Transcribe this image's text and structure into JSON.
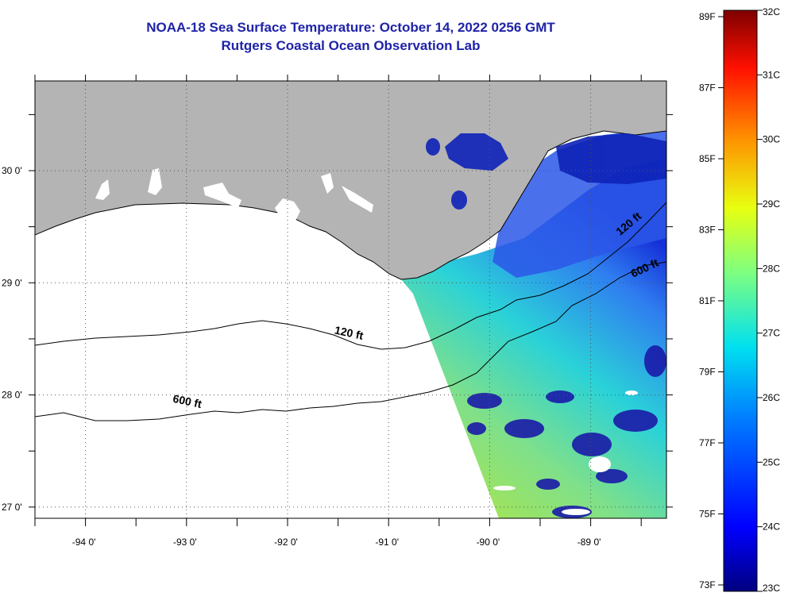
{
  "title": {
    "line1": "NOAA-18 Sea Surface Temperature:  October 14, 2022 0256 GMT",
    "line2": "Rutgers Coastal Ocean Observation Lab"
  },
  "map": {
    "lon_range": [
      -94.5,
      -88.25
    ],
    "lat_range": [
      26.9,
      30.8
    ],
    "lon_ticks": [
      {
        "value": -94,
        "label": "-94 0'"
      },
      {
        "value": -93,
        "label": "-93 0'"
      },
      {
        "value": -92,
        "label": "-92 0'"
      },
      {
        "value": -91,
        "label": "-91 0'"
      },
      {
        "value": -90,
        "label": "-90 0'"
      },
      {
        "value": -89,
        "label": "-89 0'"
      }
    ],
    "lat_ticks": [
      {
        "value": 30,
        "label": "30 0'"
      },
      {
        "value": 29,
        "label": "29 0'"
      },
      {
        "value": 28,
        "label": "28 0'"
      },
      {
        "value": 27,
        "label": "27 0'"
      }
    ],
    "contours": [
      {
        "label": "120 ft",
        "label_lon": -91.4,
        "label_lat": 28.52,
        "rotate": 12
      },
      {
        "label": "600 ft",
        "label_lon": -93.0,
        "label_lat": 27.91,
        "rotate": 12
      },
      {
        "label": "120 ft",
        "label_lon": -88.6,
        "label_lat": 29.5,
        "rotate": -40
      },
      {
        "label": "600 ft",
        "label_lon": -88.45,
        "label_lat": 29.1,
        "rotate": -25
      }
    ],
    "colors": {
      "land": "#b4b4b4",
      "ocean_nodata": "#ffffff",
      "coast": "#000000"
    }
  },
  "colorbar": {
    "f_labels": [
      "89F",
      "87F",
      "85F",
      "83F",
      "81F",
      "79F",
      "77F",
      "75F",
      "73F"
    ],
    "c_labels": [
      "32C",
      "31C",
      "30C",
      "29C",
      "28C",
      "27C",
      "26C",
      "25C",
      "24C",
      "23C"
    ]
  }
}
